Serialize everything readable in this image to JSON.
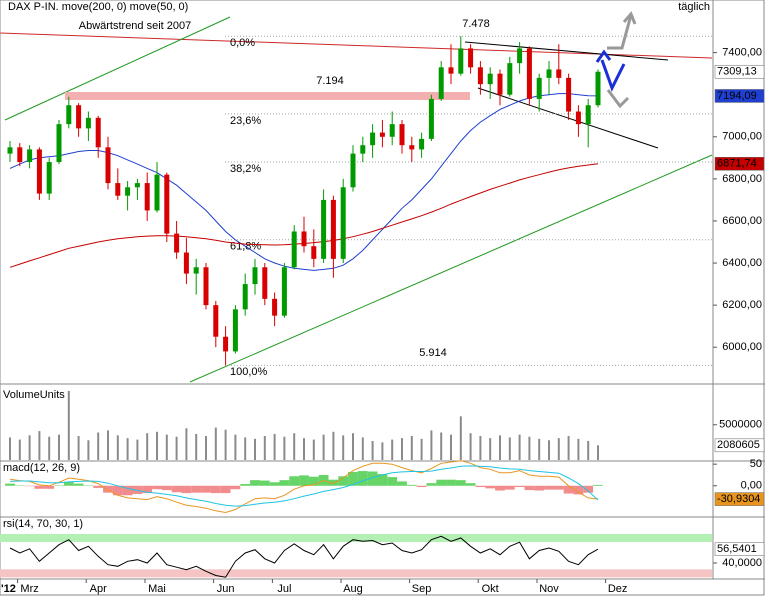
{
  "chart_data": [
    {
      "type": "candlestick",
      "title": "DAX P-IN. move(200, 0) move(50, 0)",
      "frequency": "täglich",
      "year_label": "'12",
      "categories": [
        null,
        null,
        "Mrz",
        null,
        null,
        null,
        null,
        null,
        null,
        "Apr",
        null,
        null,
        null,
        null,
        null,
        "Mai",
        null,
        null,
        null,
        null,
        null,
        null,
        "Jun",
        null,
        null,
        null,
        null,
        null,
        "Jul",
        null,
        null,
        null,
        null,
        null,
        null,
        "Aug",
        null,
        null,
        null,
        null,
        null,
        null,
        "Sep",
        null,
        null,
        null,
        null,
        null,
        null,
        "Okt",
        null,
        null,
        null,
        null,
        null,
        "Nov",
        null,
        null,
        null,
        null,
        null,
        null,
        "Dez"
      ],
      "ohlc": [
        [
          6920,
          6980,
          6880,
          6950
        ],
        [
          6950,
          6970,
          6860,
          6880
        ],
        [
          6880,
          6960,
          6850,
          6940
        ],
        [
          6940,
          6950,
          6700,
          6730
        ],
        [
          6730,
          6900,
          6700,
          6880
        ],
        [
          6880,
          7080,
          6870,
          7060
        ],
        [
          7060,
          7190,
          7040,
          7150
        ],
        [
          7150,
          7160,
          7000,
          7040
        ],
        [
          7040,
          7120,
          6980,
          7090
        ],
        [
          7090,
          7100,
          6900,
          6950
        ],
        [
          6950,
          7000,
          6750,
          6780
        ],
        [
          6780,
          6850,
          6700,
          6720
        ],
        [
          6720,
          6790,
          6650,
          6760
        ],
        [
          6760,
          6800,
          6700,
          6780
        ],
        [
          6780,
          6830,
          6600,
          6650
        ],
        [
          6650,
          6880,
          6640,
          6820
        ],
        [
          6820,
          6830,
          6500,
          6540
        ],
        [
          6540,
          6600,
          6420,
          6450
        ],
        [
          6450,
          6520,
          6300,
          6350
        ],
        [
          6350,
          6420,
          6250,
          6380
        ],
        [
          6380,
          6400,
          6180,
          6200
        ],
        [
          6200,
          6220,
          6000,
          6050
        ],
        [
          6050,
          6100,
          5914,
          5980
        ],
        [
          5980,
          6200,
          5970,
          6180
        ],
        [
          6180,
          6350,
          6150,
          6300
        ],
        [
          6300,
          6420,
          6250,
          6380
        ],
        [
          6380,
          6400,
          6200,
          6230
        ],
        [
          6230,
          6260,
          6100,
          6150
        ],
        [
          6150,
          6400,
          6140,
          6380
        ],
        [
          6380,
          6580,
          6370,
          6550
        ],
        [
          6550,
          6620,
          6450,
          6480
        ],
        [
          6480,
          6560,
          6380,
          6420
        ],
        [
          6420,
          6750,
          6400,
          6700
        ],
        [
          6700,
          6720,
          6330,
          6420
        ],
        [
          6420,
          6800,
          6400,
          6760
        ],
        [
          6760,
          6960,
          6740,
          6920
        ],
        [
          6920,
          7000,
          6880,
          6960
        ],
        [
          6960,
          7060,
          6900,
          7020
        ],
        [
          7020,
          7080,
          6950,
          7000
        ],
        [
          7000,
          7120,
          6960,
          7060
        ],
        [
          7060,
          7080,
          6920,
          6960
        ],
        [
          6960,
          7000,
          6880,
          6940
        ],
        [
          6940,
          7020,
          6900,
          6990
        ],
        [
          6990,
          7200,
          6980,
          7180
        ],
        [
          7180,
          7360,
          7170,
          7330
        ],
        [
          7330,
          7440,
          7250,
          7300
        ],
        [
          7300,
          7478,
          7290,
          7420
        ],
        [
          7420,
          7440,
          7300,
          7330
        ],
        [
          7330,
          7360,
          7200,
          7250
        ],
        [
          7250,
          7330,
          7180,
          7300
        ],
        [
          7300,
          7320,
          7150,
          7200
        ],
        [
          7200,
          7380,
          7190,
          7350
        ],
        [
          7350,
          7450,
          7300,
          7420
        ],
        [
          7420,
          7430,
          7150,
          7180
        ],
        [
          7180,
          7300,
          7120,
          7280
        ],
        [
          7280,
          7360,
          7200,
          7320
        ],
        [
          7320,
          7440,
          7250,
          7280
        ],
        [
          7280,
          7300,
          7080,
          7120
        ],
        [
          7120,
          7150,
          7000,
          7060
        ],
        [
          7060,
          7180,
          6950,
          7150
        ],
        [
          7150,
          7320,
          7140,
          7309.13
        ],
        null,
        null
      ],
      "last_label": "7309,13",
      "up_color": "#009a00",
      "down_color": "#d80000",
      "series": [
        {
          "color": "#1f3fd0",
          "last_label": "7194,09",
          "values": [
            6850,
            6870,
            6890,
            6900,
            6905,
            6910,
            6920,
            6930,
            6935,
            6935,
            6925,
            6910,
            6890,
            6870,
            6850,
            6830,
            6800,
            6770,
            6730,
            6690,
            6650,
            6600,
            6550,
            6510,
            6480,
            6450,
            6420,
            6400,
            6385,
            6375,
            6370,
            6365,
            6370,
            6375,
            6390,
            6420,
            6460,
            6510,
            6560,
            6610,
            6660,
            6700,
            6750,
            6800,
            6860,
            6920,
            6980,
            7030,
            7070,
            7100,
            7130,
            7150,
            7170,
            7185,
            7195,
            7200,
            7205,
            7205,
            7200,
            7195,
            7194.09,
            null,
            null
          ]
        },
        {
          "color": "#c40000",
          "last_label": "6871,74",
          "values": [
            6380,
            6395,
            6410,
            6425,
            6440,
            6455,
            6470,
            6480,
            6490,
            6500,
            6508,
            6515,
            6520,
            6525,
            6528,
            6530,
            6530,
            6528,
            6525,
            6520,
            6515,
            6508,
            6500,
            6495,
            6490,
            6488,
            6487,
            6486,
            6487,
            6490,
            6493,
            6497,
            6502,
            6507,
            6515,
            6525,
            6537,
            6550,
            6565,
            6580,
            6595,
            6610,
            6625,
            6642,
            6660,
            6680,
            6698,
            6716,
            6733,
            6750,
            6765,
            6780,
            6795,
            6808,
            6820,
            6832,
            6843,
            6852,
            6860,
            6866,
            6871.74,
            null,
            null
          ]
        }
      ],
      "ylim": [
        5830,
        7650
      ],
      "yticks": [
        {
          "value": 6000,
          "label": "6000,00"
        },
        {
          "value": 6200,
          "label": "6200,00"
        },
        {
          "value": 6400,
          "label": "6400,00"
        },
        {
          "value": 6600,
          "label": "6600,00"
        },
        {
          "value": 6800,
          "label": "6800,00"
        },
        {
          "value": 7000,
          "label": "7000,00"
        },
        {
          "value": 7400,
          "label": "7400,00"
        }
      ],
      "fib": [
        {
          "label": "0,0%",
          "value": 7478
        },
        {
          "label": "23,6%",
          "value": 7109
        },
        {
          "label": "38,2%",
          "value": 6880
        },
        {
          "label": "61,8%",
          "value": 6511
        },
        {
          "label": "100,0%",
          "value": 5914
        }
      ],
      "annotations": [
        {
          "text": "Abwärtstrend seit 2007"
        },
        {
          "text": "7.194",
          "value": 7194
        },
        {
          "text": "7.478",
          "value": 7478
        },
        {
          "text": "5.914",
          "value": 5914
        }
      ]
    },
    {
      "type": "bar",
      "title": "VolumeUnits",
      "color": "#8a8a8a",
      "values": [
        3200000,
        2900000,
        3500000,
        4100000,
        3300000,
        3600000,
        9800000,
        3400000,
        2800000,
        3900000,
        4200000,
        3500000,
        3100000,
        2900000,
        3800000,
        4000000,
        3600000,
        3300000,
        4500000,
        3700000,
        3400000,
        4600000,
        4300000,
        3600000,
        3200000,
        3000000,
        3400000,
        3700000,
        3300000,
        3800000,
        3100000,
        2900000,
        3600000,
        4000000,
        3500000,
        3800000,
        3200000,
        2700000,
        2500000,
        2900000,
        3100000,
        3400000,
        3000000,
        4200000,
        3900000,
        3600000,
        6200000,
        3800000,
        3400000,
        3100000,
        3500000,
        3200000,
        3600000,
        3300000,
        3000000,
        2800000,
        3100000,
        3400000,
        3000000,
        2700000,
        2080605,
        null,
        null
      ],
      "ylim": [
        0,
        10500000
      ],
      "yticks": [
        5000000
      ]
    },
    {
      "type": "macd",
      "title": "macd(12, 26, 9)",
      "histogram": {
        "up_color": "#66d466",
        "down_color": "#f28c8c",
        "values": [
          5,
          1,
          -1,
          -7,
          -7,
          1,
          9,
          5,
          1,
          -5,
          -16,
          -22,
          -22,
          -19,
          -17,
          -8,
          -10,
          -15,
          -17,
          -16,
          -16,
          -17,
          -17,
          -8,
          4,
          13,
          12,
          8,
          13,
          22,
          24,
          21,
          25,
          14,
          22,
          32,
          34,
          33,
          27,
          20,
          10,
          2,
          -3,
          6,
          14,
          14,
          13,
          6,
          -3,
          -6,
          -11,
          -9,
          -3,
          -10,
          -11,
          -9,
          -9,
          -18,
          -20,
          -16,
          2,
          null,
          null
        ]
      },
      "series": [
        {
          "color": "#e8951e",
          "last_label": "-30,9304",
          "values": [
            15,
            12,
            10,
            2,
            0,
            8,
            18,
            15,
            12,
            5,
            -10,
            -22,
            -28,
            -30,
            -32,
            -25,
            -30,
            -38,
            -45,
            -48,
            -52,
            -58,
            -62,
            -55,
            -42,
            -30,
            -28,
            -30,
            -22,
            -8,
            0,
            2,
            12,
            5,
            18,
            35,
            45,
            52,
            52,
            50,
            42,
            35,
            30,
            40,
            52,
            55,
            58,
            52,
            42,
            38,
            30,
            30,
            35,
            25,
            22,
            22,
            20,
            0,
            -15,
            -28,
            -30.9304,
            null,
            null
          ]
        },
        {
          "color": "#1ec4e6",
          "values": [
            10,
            11,
            11,
            9,
            7,
            7,
            9,
            10,
            11,
            10,
            6,
            0,
            -6,
            -11,
            -15,
            -17,
            -20,
            -23,
            -28,
            -32,
            -36,
            -41,
            -45,
            -47,
            -46,
            -43,
            -40,
            -38,
            -35,
            -30,
            -24,
            -19,
            -13,
            -9,
            -4,
            3,
            11,
            19,
            25,
            30,
            32,
            33,
            33,
            34,
            38,
            41,
            45,
            46,
            45,
            44,
            41,
            39,
            38,
            35,
            33,
            31,
            29,
            18,
            5,
            -12,
            -33,
            null,
            null
          ]
        }
      ],
      "ylim": [
        -70,
        55
      ],
      "yticks": [
        50,
        {
          "value": 0,
          "label": "0,00"
        }
      ]
    },
    {
      "type": "line",
      "title": "rsi(14, 70, 30, 1)",
      "upper": 70,
      "lower": 30,
      "upper_color": "#b4f0b4",
      "lower_color": "#f6c4c4",
      "series": [
        {
          "color": "#000000",
          "last_label": "56,5401",
          "values": [
            58,
            52,
            57,
            42,
            52,
            62,
            68,
            55,
            60,
            48,
            38,
            36,
            42,
            44,
            40,
            52,
            38,
            35,
            32,
            36,
            30,
            25,
            23,
            42,
            52,
            56,
            45,
            40,
            55,
            63,
            55,
            50,
            62,
            45,
            60,
            68,
            66,
            67,
            62,
            64,
            55,
            52,
            56,
            68,
            72,
            66,
            70,
            60,
            52,
            57,
            50,
            60,
            65,
            45,
            55,
            58,
            54,
            42,
            38,
            50,
            56.5401,
            null,
            null
          ]
        }
      ],
      "ylim": [
        22,
        94
      ],
      "yticks": [
        {
          "value": 40,
          "label": "40,0000"
        }
      ]
    }
  ]
}
